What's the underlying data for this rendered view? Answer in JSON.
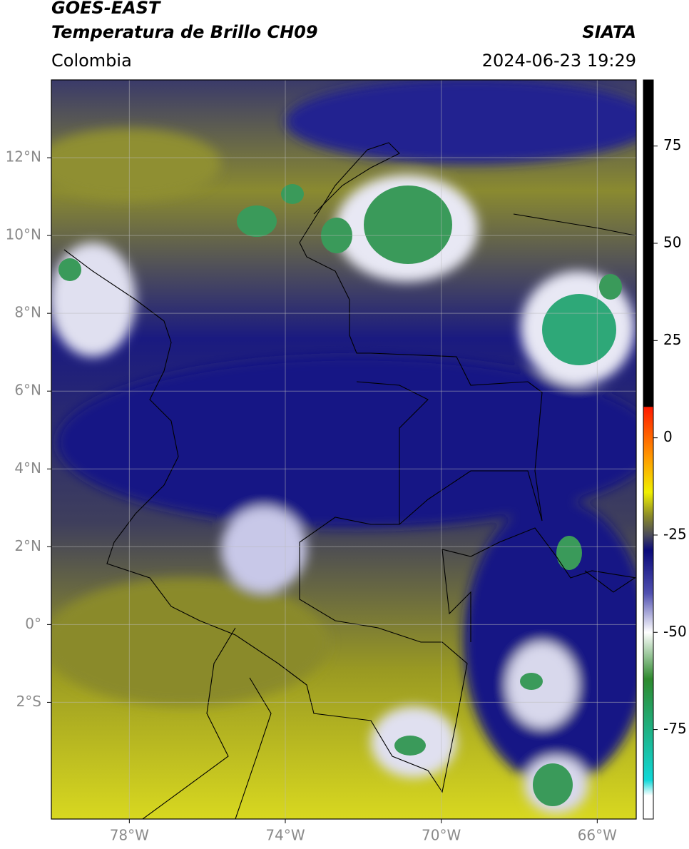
{
  "header": {
    "title": "GOES-EAST",
    "subtitle": "Temperatura de Brillo CH09",
    "agency": "SIATA",
    "region": "Colombia",
    "datetime": "2024-06-23 19:29"
  },
  "map": {
    "lonlim": [
      -80,
      -65
    ],
    "latlim": [
      -5,
      14
    ],
    "lonticks": [
      {
        "value": -78,
        "label": "78°W"
      },
      {
        "value": -74,
        "label": "74°W"
      },
      {
        "value": -70,
        "label": "70°W"
      },
      {
        "value": -66,
        "label": "66°W"
      }
    ],
    "latticks": [
      {
        "value": 12,
        "label": "12°N"
      },
      {
        "value": 10,
        "label": "10°N"
      },
      {
        "value": 8,
        "label": "8°N"
      },
      {
        "value": 6,
        "label": "6°N"
      },
      {
        "value": 4,
        "label": "4°N"
      },
      {
        "value": 2,
        "label": "2°N"
      },
      {
        "value": 0,
        "label": "0°"
      },
      {
        "value": -2,
        "label": "2°S"
      }
    ],
    "grid": true
  },
  "colorbar": {
    "vlim": [
      -98,
      92
    ],
    "ticks": [
      75,
      50,
      25,
      0,
      -25,
      -50,
      -75
    ],
    "colormap": [
      {
        "value": 92,
        "color": "#000000"
      },
      {
        "value": 8,
        "color": "#000000"
      },
      {
        "value": 7.9,
        "color": "#ff1a00"
      },
      {
        "value": -5,
        "color": "#ff9900"
      },
      {
        "value": -14,
        "color": "#f0f000"
      },
      {
        "value": -20,
        "color": "#8c8c28"
      },
      {
        "value": -25,
        "color": "#4a4a5a"
      },
      {
        "value": -29,
        "color": "#0a0a7a"
      },
      {
        "value": -40,
        "color": "#5050b0"
      },
      {
        "value": -50,
        "color": "#ffffff"
      },
      {
        "value": -62,
        "color": "#2e8a2e"
      },
      {
        "value": -88,
        "color": "#10d8d8"
      },
      {
        "value": -92,
        "color": "#ffffff"
      }
    ]
  }
}
